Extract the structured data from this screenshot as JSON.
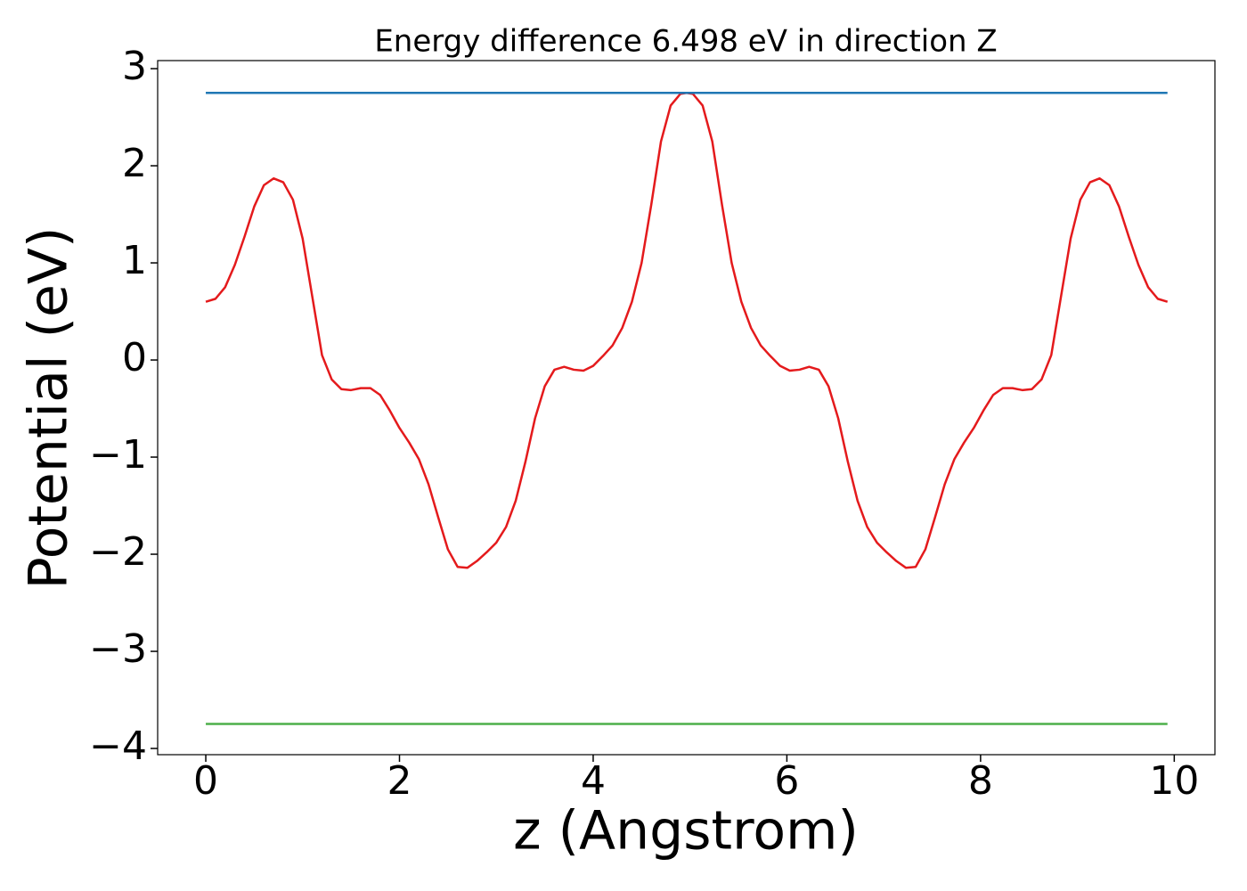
{
  "chart_data": {
    "type": "line",
    "title": "Energy difference 6.498 eV in direction Z",
    "x_label": "z (Angstrom)",
    "y_label": "Potential (eV)",
    "xlim": [
      -0.497,
      10.42
    ],
    "ylim": [
      -4.064,
      3.083
    ],
    "xticks": [
      0,
      2,
      4,
      6,
      8,
      10
    ],
    "yticks": [
      {
        "value": -4,
        "label": "−4"
      },
      {
        "value": -3,
        "label": "−3"
      },
      {
        "value": -2,
        "label": "−2"
      },
      {
        "value": -1,
        "label": "−1"
      },
      0,
      1,
      2,
      3
    ],
    "grid": false,
    "series": [
      {
        "color": "#e41a1c",
        "x": [
          0,
          0.1,
          0.2,
          0.3,
          0.4,
          0.5,
          0.6,
          0.7,
          0.8,
          0.9,
          1.0,
          1.1,
          1.2,
          1.3,
          1.4,
          1.5,
          1.6,
          1.7,
          1.8,
          1.9,
          2.0,
          2.1,
          2.2,
          2.3,
          2.4,
          2.5,
          2.6,
          2.7,
          2.8,
          2.9,
          3.0,
          3.1,
          3.2,
          3.3,
          3.4,
          3.5,
          3.6,
          3.7,
          3.8,
          3.9,
          4.0,
          4.1,
          4.2,
          4.3,
          4.4,
          4.5,
          4.6,
          4.7,
          4.8,
          4.9,
          4.965,
          5.03,
          5.13,
          5.23,
          5.33,
          5.43,
          5.53,
          5.63,
          5.73,
          5.83,
          5.93,
          6.03,
          6.13,
          6.23,
          6.33,
          6.43,
          6.53,
          6.63,
          6.73,
          6.83,
          6.93,
          7.03,
          7.13,
          7.23,
          7.33,
          7.43,
          7.53,
          7.63,
          7.73,
          7.83,
          7.93,
          8.03,
          8.13,
          8.23,
          8.33,
          8.43,
          8.53,
          8.63,
          8.73,
          8.83,
          8.93,
          9.03,
          9.13,
          9.23,
          9.33,
          9.43,
          9.53,
          9.63,
          9.73,
          9.83,
          9.93
        ],
        "values": [
          0.6,
          0.63,
          0.75,
          0.98,
          1.27,
          1.58,
          1.8,
          1.87,
          1.83,
          1.65,
          1.25,
          0.65,
          0.05,
          -0.2,
          -0.3,
          -0.31,
          -0.29,
          -0.29,
          -0.36,
          -0.52,
          -0.7,
          -0.85,
          -1.02,
          -1.28,
          -1.62,
          -1.95,
          -2.13,
          -2.14,
          -2.07,
          -1.98,
          -1.88,
          -1.72,
          -1.45,
          -1.05,
          -0.6,
          -0.27,
          -0.1,
          -0.07,
          -0.1,
          -0.11,
          -0.06,
          0.04,
          0.15,
          0.33,
          0.6,
          1.0,
          1.6,
          2.25,
          2.62,
          2.74,
          2.75,
          2.74,
          2.62,
          2.25,
          1.6,
          1.0,
          0.6,
          0.33,
          0.15,
          0.04,
          -0.06,
          -0.11,
          -0.1,
          -0.07,
          -0.1,
          -0.27,
          -0.6,
          -1.05,
          -1.45,
          -1.72,
          -1.88,
          -1.98,
          -2.07,
          -2.14,
          -2.13,
          -1.95,
          -1.62,
          -1.28,
          -1.02,
          -0.85,
          -0.7,
          -0.52,
          -0.36,
          -0.29,
          -0.29,
          -0.31,
          -0.3,
          -0.2,
          0.05,
          0.65,
          1.25,
          1.65,
          1.83,
          1.87,
          1.8,
          1.58,
          1.27,
          0.98,
          0.75,
          0.63,
          0.6
        ]
      },
      {
        "color": "#1f77b4",
        "x": [
          0,
          9.93
        ],
        "values": [
          2.75,
          2.75
        ]
      },
      {
        "color": "#4daf4a",
        "x": [
          0,
          9.93
        ],
        "values": [
          -3.748,
          -3.748
        ]
      }
    ]
  }
}
